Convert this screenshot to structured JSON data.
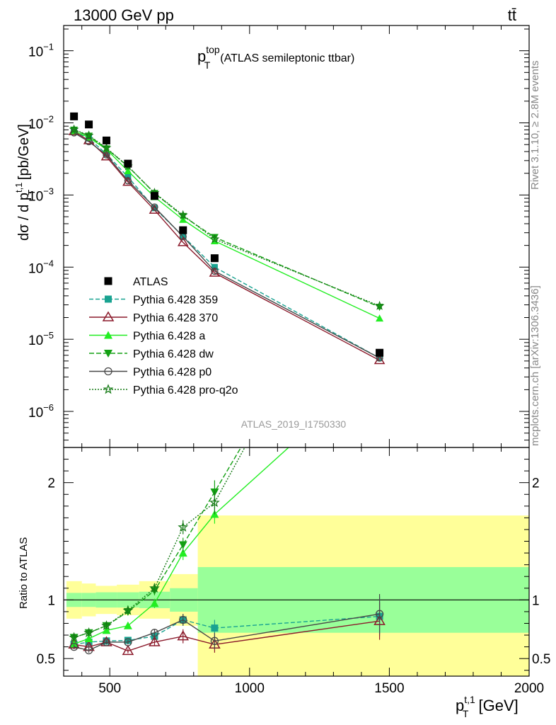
{
  "header": {
    "left": "13000 GeV pp",
    "right": "tt̄"
  },
  "side": {
    "rivet": "Rivet 3.1.10, ≥ 2.8M events",
    "mcplots": "mcplots.cern.ch [arXiv:1306.3436]"
  },
  "watermark": "ATLAS_2019_I1750330",
  "chart_data": {
    "type": "line",
    "title": {
      "main": "p",
      "sup": "top",
      "sub": "T",
      "rest": "(ATLAS semileptonic ttbar)"
    },
    "ylabel_top": {
      "pre": "dσ / d p",
      "sup": "t,1",
      "sub": "T",
      "post": " [pb/GeV]"
    },
    "ylabel_bottom": "Ratio to ATLAS",
    "xlabel": {
      "p": "p",
      "sup": "t,1",
      "sub": "T",
      "unit": " [GeV]"
    },
    "xlim": [
      335,
      2000
    ],
    "ylim_top_log10": [
      -6.5,
      -0.65
    ],
    "ylim_bottom": [
      0.35,
      2.3
    ],
    "x_ticks": [
      500,
      1000,
      1500,
      2000
    ],
    "x_tick_labels": [
      "500",
      "1000",
      "1500",
      "2000"
    ],
    "y_ticks_top": [
      {
        "exp": -1,
        "label": "10",
        "sup": "−1"
      },
      {
        "exp": -2,
        "label": "10",
        "sup": "−2"
      },
      {
        "exp": -3,
        "label": "10",
        "sup": "−3"
      },
      {
        "exp": -4,
        "label": "10",
        "sup": "−4"
      },
      {
        "exp": -5,
        "label": "10",
        "sup": "−5"
      },
      {
        "exp": -6,
        "label": "10",
        "sup": "−6"
      }
    ],
    "y_ticks_bottom": [
      {
        "v": 0.5,
        "label": "0.5"
      },
      {
        "v": 1,
        "label": "1"
      },
      {
        "v": 2,
        "label": "2"
      }
    ],
    "data": {
      "name": "ATLAS",
      "x": [
        372,
        425,
        488,
        565,
        660,
        762,
        875,
        1465
      ],
      "xlow": [
        345,
        400,
        450,
        525,
        605,
        715,
        815,
        815
      ],
      "xhigh": [
        400,
        450,
        525,
        605,
        715,
        815,
        935,
        2000
      ],
      "y": [
        0.0123,
        0.0095,
        0.0057,
        0.00272,
        0.00097,
        0.000325,
        0.000133,
        6.5e-06
      ],
      "band_inner": [
        0.06,
        0.06,
        0.065,
        0.065,
        0.07,
        0.1,
        0.28,
        0.28
      ],
      "band_outer": [
        0.16,
        0.14,
        0.12,
        0.13,
        0.16,
        0.22,
        0.72,
        0.72
      ]
    },
    "series": [
      {
        "name": "Pythia 6.428 359",
        "color": "#19a391",
        "dash": "6,3",
        "marker": "square",
        "y": [
          0.0076,
          0.0061,
          0.0037,
          0.00178,
          0.00066,
          0.000268,
          0.0001,
          5.5e-06
        ],
        "ratio": [
          0.62,
          0.64,
          0.65,
          0.655,
          0.69,
          0.83,
          0.76,
          0.86
        ],
        "ratio_err": [
          0.02,
          0.02,
          0.02,
          0.025,
          0.03,
          0.05,
          0.07,
          0.17
        ]
      },
      {
        "name": "Pythia 6.428 370",
        "color": "#8b1a2b",
        "dash": "",
        "marker": "triangle-open",
        "y": [
          0.0076,
          0.0057,
          0.0034,
          0.00151,
          0.00062,
          0.00022,
          8.3e-05,
          5.1e-06
        ],
        "ratio": [
          0.62,
          0.6,
          0.64,
          0.565,
          0.64,
          0.69,
          0.62,
          0.82
        ],
        "ratio_err": [
          0.02,
          0.02,
          0.02,
          0.02,
          0.03,
          0.06,
          0.07,
          0.16
        ]
      },
      {
        "name": "Pythia 6.428 a",
        "color": "#22ee22",
        "dash": "",
        "marker": "triangle",
        "y": [
          0.0077,
          0.0063,
          0.0043,
          0.00215,
          0.00094,
          0.000455,
          0.00023,
          1.95e-05
        ],
        "ratio": [
          0.625,
          0.67,
          0.74,
          0.78,
          0.97,
          1.4,
          1.73,
          3.0
        ],
        "ratio_err": [
          0.02,
          0.02,
          0.02,
          0.02,
          0.04,
          0.06,
          0.08,
          0.2
        ]
      },
      {
        "name": "Pythia 6.428 dw",
        "color": "#13a013",
        "dash": "7,3",
        "marker": "triangle-down",
        "y": [
          0.008,
          0.0066,
          0.0044,
          0.0025,
          0.00106,
          0.00051,
          0.00026,
          2.8e-05
        ],
        "ratio": [
          0.68,
          0.72,
          0.78,
          0.9,
          1.08,
          1.47,
          1.92,
          4.3
        ],
        "ratio_err": [
          0.02,
          0.02,
          0.02,
          0.03,
          0.04,
          0.06,
          0.1,
          0.3
        ]
      },
      {
        "name": "Pythia 6.428 p0",
        "color": "#474747",
        "dash": "",
        "marker": "circle-open",
        "y": [
          0.0073,
          0.0055,
          0.0036,
          0.00158,
          0.00068,
          0.000265,
          8.8e-05,
          5.5e-06
        ],
        "ratio": [
          0.6,
          0.57,
          0.64,
          0.64,
          0.72,
          0.83,
          0.65,
          0.88
        ],
        "ratio_err": [
          0.02,
          0.02,
          0.02,
          0.02,
          0.03,
          0.05,
          0.07,
          0.17
        ]
      },
      {
        "name": "Pythia 6.428 pro-q2o",
        "color": "#157a15",
        "dash": "2,2",
        "marker": "star-open",
        "y": [
          0.0081,
          0.0067,
          0.0045,
          0.0025,
          0.00107,
          0.000525,
          0.000245,
          2.9e-05
        ],
        "ratio": [
          0.68,
          0.72,
          0.78,
          0.91,
          1.1,
          1.62,
          1.83,
          4.4
        ],
        "ratio_err": [
          0.02,
          0.02,
          0.02,
          0.03,
          0.04,
          0.06,
          0.1,
          0.3
        ]
      }
    ]
  }
}
